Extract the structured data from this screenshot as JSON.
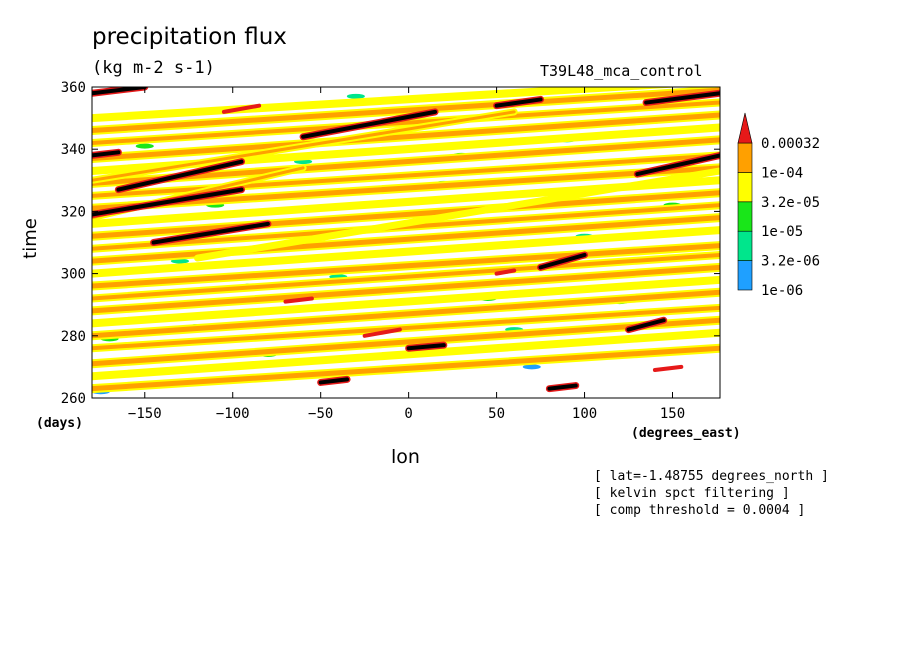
{
  "chart_data": {
    "type": "heatmap",
    "title": "precipitation flux",
    "subtitle": "(kg m-2 s-1)",
    "run_name": "T39L48_mca_control",
    "xlabel": "lon",
    "xunits": "(degrees_east)",
    "ylabel": "time",
    "yunits": "(days)",
    "xlim": [
      -180,
      177
    ],
    "ylim": [
      260,
      360
    ],
    "xticks": [
      -150,
      -100,
      -50,
      0,
      50,
      100,
      150
    ],
    "yticks": [
      260,
      280,
      300,
      320,
      340,
      360
    ],
    "colorbar": {
      "levels": [
        "1e-06",
        "3.2e-06",
        "1e-05",
        "3.2e-05",
        "1e-04",
        "0.00032"
      ],
      "colors": [
        "#1fa0ff",
        "#00e68c",
        "#19e619",
        "#ffff00",
        "#ffa000",
        "#e61919"
      ],
      "over_color": "#e61919",
      "extreme_color": "#000000"
    },
    "bands": [
      {
        "x0": -180,
        "y0": 263,
        "x1": 177,
        "y1": 276,
        "w": 5,
        "level": 4
      },
      {
        "x0": -180,
        "y0": 267,
        "x1": 177,
        "y1": 281,
        "w": 4,
        "level": 3
      },
      {
        "x0": -180,
        "y0": 271,
        "x1": 177,
        "y1": 285,
        "w": 5,
        "level": 4
      },
      {
        "x0": -180,
        "y0": 276,
        "x1": 177,
        "y1": 289,
        "w": 4,
        "level": 4
      },
      {
        "x0": -180,
        "y0": 280,
        "x1": 177,
        "y1": 294,
        "w": 5,
        "level": 4
      },
      {
        "x0": -180,
        "y0": 284,
        "x1": 177,
        "y1": 298,
        "w": 4,
        "level": 3
      },
      {
        "x0": -180,
        "y0": 288,
        "x1": 177,
        "y1": 302,
        "w": 5,
        "level": 4
      },
      {
        "x0": -180,
        "y0": 292,
        "x1": 177,
        "y1": 306,
        "w": 4,
        "level": 4
      },
      {
        "x0": -180,
        "y0": 296,
        "x1": 177,
        "y1": 309,
        "w": 5,
        "level": 4
      },
      {
        "x0": -180,
        "y0": 300,
        "x1": 177,
        "y1": 314,
        "w": 4,
        "level": 3
      },
      {
        "x0": -180,
        "y0": 304,
        "x1": 177,
        "y1": 318,
        "w": 5,
        "level": 4
      },
      {
        "x0": -180,
        "y0": 308,
        "x1": 177,
        "y1": 322,
        "w": 4,
        "level": 4
      },
      {
        "x0": -180,
        "y0": 312,
        "x1": 177,
        "y1": 326,
        "w": 5,
        "level": 4
      },
      {
        "x0": -180,
        "y0": 316,
        "x1": 177,
        "y1": 330,
        "w": 4,
        "level": 3
      },
      {
        "x0": -180,
        "y0": 321,
        "x1": 177,
        "y1": 334,
        "w": 5,
        "level": 4
      },
      {
        "x0": -180,
        "y0": 325,
        "x1": 177,
        "y1": 338,
        "w": 4,
        "level": 4
      },
      {
        "x0": -180,
        "y0": 329,
        "x1": 177,
        "y1": 343,
        "w": 5,
        "level": 4
      },
      {
        "x0": -180,
        "y0": 333,
        "x1": 177,
        "y1": 347,
        "w": 4,
        "level": 3
      },
      {
        "x0": -180,
        "y0": 337,
        "x1": 177,
        "y1": 351,
        "w": 5,
        "level": 4
      },
      {
        "x0": -180,
        "y0": 342,
        "x1": 177,
        "y1": 355,
        "w": 4,
        "level": 4
      },
      {
        "x0": -180,
        "y0": 346,
        "x1": 177,
        "y1": 359,
        "w": 5,
        "level": 4
      },
      {
        "x0": -180,
        "y0": 350,
        "x1": 177,
        "y1": 362,
        "w": 4,
        "level": 3
      },
      {
        "x0": -180,
        "y0": 318,
        "x1": -60,
        "y1": 334,
        "w": 3,
        "level": 4
      },
      {
        "x0": -180,
        "y0": 330,
        "x1": 60,
        "y1": 352,
        "w": 3,
        "level": 4
      },
      {
        "x0": -120,
        "y0": 305,
        "x1": 177,
        "y1": 333,
        "w": 3,
        "level": 3
      }
    ],
    "extreme_segments": [
      {
        "x0": -180,
        "y0": 338,
        "x1": -165,
        "y1": 339,
        "level": 6
      },
      {
        "x0": -165,
        "y0": 327,
        "x1": -95,
        "y1": 336,
        "level": 6
      },
      {
        "x0": -180,
        "y0": 319,
        "x1": -95,
        "y1": 327,
        "level": 6
      },
      {
        "x0": -145,
        "y0": 310,
        "x1": -80,
        "y1": 316,
        "level": 6
      },
      {
        "x0": -60,
        "y0": 344,
        "x1": 15,
        "y1": 352,
        "level": 6
      },
      {
        "x0": 50,
        "y0": 354,
        "x1": 75,
        "y1": 356,
        "level": 6
      },
      {
        "x0": 135,
        "y0": 355,
        "x1": 177,
        "y1": 358,
        "level": 6
      },
      {
        "x0": 130,
        "y0": 332,
        "x1": 177,
        "y1": 338,
        "level": 6
      },
      {
        "x0": 75,
        "y0": 302,
        "x1": 100,
        "y1": 306,
        "level": 6
      },
      {
        "x0": 125,
        "y0": 282,
        "x1": 145,
        "y1": 285,
        "level": 6
      },
      {
        "x0": 0,
        "y0": 276,
        "x1": 20,
        "y1": 277,
        "level": 6
      },
      {
        "x0": -50,
        "y0": 265,
        "x1": -35,
        "y1": 266,
        "level": 6
      },
      {
        "x0": 80,
        "y0": 263,
        "x1": 95,
        "y1": 264,
        "level": 6
      },
      {
        "x0": -105,
        "y0": 352,
        "x1": -85,
        "y1": 354,
        "level": 5
      },
      {
        "x0": -25,
        "y0": 280,
        "x1": -5,
        "y1": 282,
        "level": 5
      },
      {
        "x0": 50,
        "y0": 300,
        "x1": 60,
        "y1": 301,
        "level": 5
      },
      {
        "x0": -70,
        "y0": 291,
        "x1": -55,
        "y1": 292,
        "level": 5
      },
      {
        "x0": 140,
        "y0": 269,
        "x1": 155,
        "y1": 270,
        "level": 5
      },
      {
        "x0": -180,
        "y0": 358,
        "x1": -150,
        "y1": 360,
        "level": 6
      }
    ],
    "speckles": [
      {
        "x": -170,
        "y": 279,
        "level": 2
      },
      {
        "x": -120,
        "y": 283,
        "level": 1
      },
      {
        "x": -90,
        "y": 296,
        "level": 2
      },
      {
        "x": -40,
        "y": 299,
        "level": 1
      },
      {
        "x": 10,
        "y": 287,
        "level": 2
      },
      {
        "x": 60,
        "y": 282,
        "level": 1
      },
      {
        "x": 120,
        "y": 291,
        "level": 2
      },
      {
        "x": 160,
        "y": 297,
        "level": 1
      },
      {
        "x": -150,
        "y": 341,
        "level": 2
      },
      {
        "x": -60,
        "y": 336,
        "level": 1
      },
      {
        "x": 30,
        "y": 338,
        "level": 2
      },
      {
        "x": 90,
        "y": 343,
        "level": 1
      },
      {
        "x": 150,
        "y": 322,
        "level": 2
      },
      {
        "x": -130,
        "y": 304,
        "level": 1
      },
      {
        "x": -10,
        "y": 315,
        "level": 2
      },
      {
        "x": 100,
        "y": 312,
        "level": 1
      },
      {
        "x": -175,
        "y": 262,
        "level": 0
      },
      {
        "x": 70,
        "y": 270,
        "level": 0
      },
      {
        "x": -80,
        "y": 274,
        "level": 2
      },
      {
        "x": 20,
        "y": 329,
        "level": 1
      },
      {
        "x": 140,
        "y": 349,
        "level": 2
      },
      {
        "x": -30,
        "y": 357,
        "level": 1
      },
      {
        "x": 45,
        "y": 292,
        "level": 2
      },
      {
        "x": -110,
        "y": 322,
        "level": 2
      }
    ]
  },
  "notes": [
    "[ lat=-1.48755 degrees_north ]",
    "[ kelvin spct filtering ]",
    "[ comp threshold = 0.0004 ]"
  ]
}
